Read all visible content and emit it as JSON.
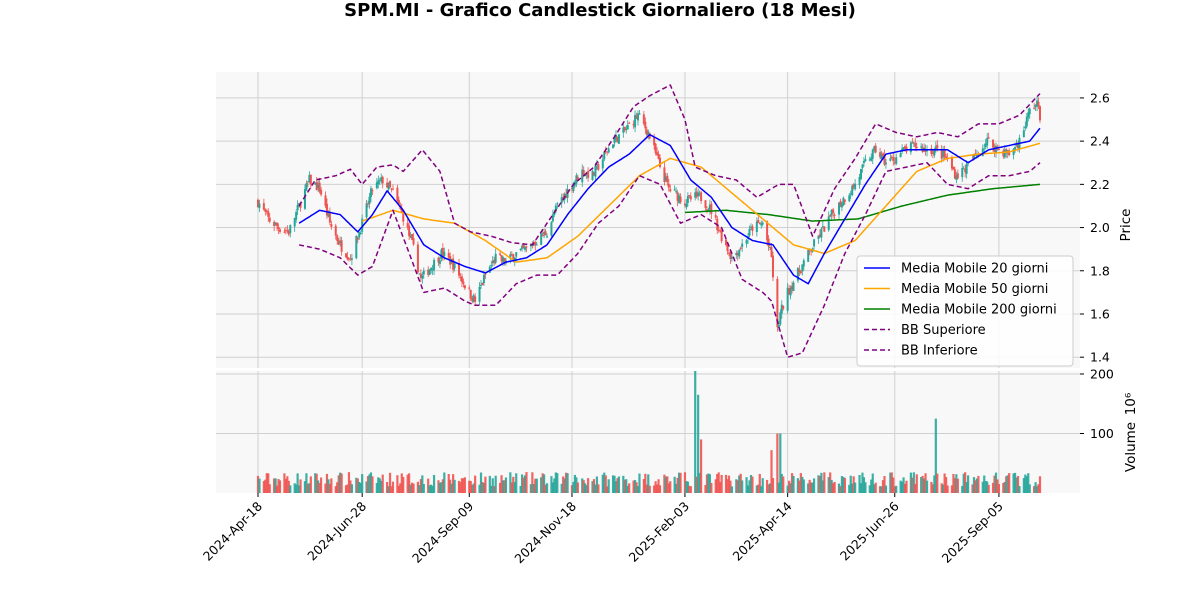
{
  "chart_data": {
    "type": "candlestick",
    "title": "SPM.MI - Grafico Candlestick Giornaliero (18 Mesi)",
    "price_panel": {
      "ylabel": "Price",
      "ylim": [
        1.35,
        2.72
      ],
      "yticks": [
        1.4,
        1.6,
        1.8,
        2.0,
        2.2,
        2.4,
        2.6
      ],
      "ytick_labels": [
        "1.4",
        "1.6",
        "1.8",
        "2.0",
        "2.2",
        "2.4",
        "2.6"
      ],
      "grid": true
    },
    "volume_panel": {
      "ylabel": "Volume",
      "unit_exponent": "10⁶",
      "ylim": [
        0,
        205
      ],
      "yticks": [
        100,
        200
      ],
      "ytick_labels": [
        "100",
        "200"
      ],
      "grid": true
    },
    "x_axis": {
      "start_date": "2024-04-18",
      "end_date": "2025-10-03",
      "tick_labels": [
        "2024-Apr-18",
        "2024-Jun-28",
        "2024-Sep-09",
        "2024-Nov-18",
        "2025-Feb-03",
        "2025-Apr-14",
        "2025-Jun-26",
        "2025-Sep-05"
      ]
    },
    "colors": {
      "up": "#26a69a",
      "down": "#ef5350",
      "ma20": "#0000ff",
      "ma50": "#ffa500",
      "ma200": "#008000",
      "bb": "#800080"
    },
    "legend_position": "center-right",
    "legend": [
      {
        "label": "Media Mobile 20 giorni",
        "color": "#0000ff",
        "style": "solid"
      },
      {
        "label": "Media Mobile 50 giorni",
        "color": "#ffa500",
        "style": "solid"
      },
      {
        "label": "Media Mobile 200 giorni",
        "color": "#008000",
        "style": "solid"
      },
      {
        "label": "BB Superiore",
        "color": "#800080",
        "style": "dashed"
      },
      {
        "label": "BB Inferiore",
        "color": "#800080",
        "style": "dashed"
      }
    ],
    "close_anchors": [
      [
        "2024-04-18",
        2.12
      ],
      [
        "2024-04-25",
        2.04
      ],
      [
        "2024-05-02",
        2.0
      ],
      [
        "2024-05-09",
        1.98
      ],
      [
        "2024-05-16",
        2.1
      ],
      [
        "2024-05-23",
        2.22
      ],
      [
        "2024-05-30",
        2.18
      ],
      [
        "2024-06-06",
        2.02
      ],
      [
        "2024-06-13",
        1.92
      ],
      [
        "2024-06-20",
        1.86
      ],
      [
        "2024-06-28",
        2.02
      ],
      [
        "2024-07-05",
        2.18
      ],
      [
        "2024-07-12",
        2.22
      ],
      [
        "2024-07-19",
        2.16
      ],
      [
        "2024-07-26",
        2.05
      ],
      [
        "2024-08-02",
        1.9
      ],
      [
        "2024-08-07",
        1.76
      ],
      [
        "2024-08-14",
        1.82
      ],
      [
        "2024-08-21",
        1.88
      ],
      [
        "2024-08-28",
        1.84
      ],
      [
        "2024-09-04",
        1.76
      ],
      [
        "2024-09-09",
        1.7
      ],
      [
        "2024-09-13",
        1.66
      ],
      [
        "2024-09-20",
        1.78
      ],
      [
        "2024-09-27",
        1.86
      ],
      [
        "2024-10-04",
        1.84
      ],
      [
        "2024-10-11",
        1.88
      ],
      [
        "2024-10-18",
        1.9
      ],
      [
        "2024-10-25",
        1.94
      ],
      [
        "2024-11-01",
        1.98
      ],
      [
        "2024-11-08",
        2.1
      ],
      [
        "2024-11-18",
        2.2
      ],
      [
        "2024-11-25",
        2.26
      ],
      [
        "2024-12-02",
        2.24
      ],
      [
        "2024-12-09",
        2.32
      ],
      [
        "2024-12-16",
        2.4
      ],
      [
        "2024-12-23",
        2.44
      ],
      [
        "2025-01-02",
        2.52
      ],
      [
        "2025-01-09",
        2.44
      ],
      [
        "2025-01-16",
        2.3
      ],
      [
        "2025-01-23",
        2.18
      ],
      [
        "2025-02-03",
        2.12
      ],
      [
        "2025-02-10",
        2.14
      ],
      [
        "2025-02-14",
        2.14
      ],
      [
        "2025-02-21",
        2.08
      ],
      [
        "2025-02-28",
        1.96
      ],
      [
        "2025-03-07",
        1.86
      ],
      [
        "2025-03-14",
        1.92
      ],
      [
        "2025-03-21",
        2.0
      ],
      [
        "2025-03-28",
        2.02
      ],
      [
        "2025-04-03",
        1.86
      ],
      [
        "2025-04-07",
        1.52
      ],
      [
        "2025-04-09",
        1.6
      ],
      [
        "2025-04-14",
        1.7
      ],
      [
        "2025-04-22",
        1.8
      ],
      [
        "2025-04-30",
        1.9
      ],
      [
        "2025-05-09",
        2.0
      ],
      [
        "2025-05-16",
        2.08
      ],
      [
        "2025-05-23",
        2.14
      ],
      [
        "2025-05-30",
        2.2
      ],
      [
        "2025-06-06",
        2.3
      ],
      [
        "2025-06-13",
        2.36
      ],
      [
        "2025-06-20",
        2.3
      ],
      [
        "2025-06-26",
        2.32
      ],
      [
        "2025-07-03",
        2.36
      ],
      [
        "2025-07-10",
        2.38
      ],
      [
        "2025-07-17",
        2.36
      ],
      [
        "2025-07-24",
        2.36
      ],
      [
        "2025-07-31",
        2.32
      ],
      [
        "2025-08-07",
        2.24
      ],
      [
        "2025-08-14",
        2.28
      ],
      [
        "2025-08-21",
        2.34
      ],
      [
        "2025-08-28",
        2.4
      ],
      [
        "2025-09-05",
        2.36
      ],
      [
        "2025-09-12",
        2.34
      ],
      [
        "2025-09-19",
        2.4
      ],
      [
        "2025-09-26",
        2.54
      ],
      [
        "2025-10-01",
        2.58
      ],
      [
        "2025-10-03",
        2.5
      ]
    ],
    "ma20_anchors": [
      [
        "2024-05-16",
        2.02
      ],
      [
        "2024-05-30",
        2.08
      ],
      [
        "2024-06-13",
        2.06
      ],
      [
        "2024-06-25",
        1.98
      ],
      [
        "2024-07-05",
        2.06
      ],
      [
        "2024-07-15",
        2.17
      ],
      [
        "2024-07-26",
        2.08
      ],
      [
        "2024-08-09",
        1.92
      ],
      [
        "2024-08-23",
        1.86
      ],
      [
        "2024-09-06",
        1.82
      ],
      [
        "2024-09-20",
        1.79
      ],
      [
        "2024-10-04",
        1.84
      ],
      [
        "2024-10-18",
        1.86
      ],
      [
        "2024-11-01",
        1.92
      ],
      [
        "2024-11-15",
        2.06
      ],
      [
        "2024-11-29",
        2.18
      ],
      [
        "2024-12-13",
        2.28
      ],
      [
        "2024-12-27",
        2.34
      ],
      [
        "2025-01-10",
        2.43
      ],
      [
        "2025-01-24",
        2.38
      ],
      [
        "2025-02-07",
        2.22
      ],
      [
        "2025-02-21",
        2.14
      ],
      [
        "2025-03-07",
        2.0
      ],
      [
        "2025-03-21",
        1.94
      ],
      [
        "2025-04-04",
        1.92
      ],
      [
        "2025-04-18",
        1.78
      ],
      [
        "2025-04-28",
        1.74
      ],
      [
        "2025-05-09",
        1.88
      ],
      [
        "2025-05-23",
        2.04
      ],
      [
        "2025-06-06",
        2.2
      ],
      [
        "2025-06-20",
        2.34
      ],
      [
        "2025-07-04",
        2.36
      ],
      [
        "2025-07-18",
        2.36
      ],
      [
        "2025-08-01",
        2.36
      ],
      [
        "2025-08-15",
        2.3
      ],
      [
        "2025-08-29",
        2.36
      ],
      [
        "2025-09-12",
        2.38
      ],
      [
        "2025-09-26",
        2.4
      ],
      [
        "2025-10-03",
        2.46
      ]
    ],
    "ma50_anchors": [
      [
        "2024-06-28",
        2.03
      ],
      [
        "2024-07-19",
        2.08
      ],
      [
        "2024-08-09",
        2.04
      ],
      [
        "2024-08-30",
        2.02
      ],
      [
        "2024-09-20",
        1.94
      ],
      [
        "2024-10-11",
        1.84
      ],
      [
        "2024-11-01",
        1.86
      ],
      [
        "2024-11-22",
        1.96
      ],
      [
        "2024-12-13",
        2.1
      ],
      [
        "2025-01-03",
        2.24
      ],
      [
        "2025-01-24",
        2.32
      ],
      [
        "2025-02-14",
        2.28
      ],
      [
        "2025-03-07",
        2.16
      ],
      [
        "2025-03-28",
        2.04
      ],
      [
        "2025-04-18",
        1.92
      ],
      [
        "2025-05-09",
        1.88
      ],
      [
        "2025-05-30",
        1.94
      ],
      [
        "2025-06-20",
        2.1
      ],
      [
        "2025-07-11",
        2.26
      ],
      [
        "2025-08-01",
        2.32
      ],
      [
        "2025-08-22",
        2.34
      ],
      [
        "2025-09-12",
        2.35
      ],
      [
        "2025-10-03",
        2.39
      ]
    ],
    "ma200_anchors": [
      [
        "2025-02-03",
        2.07
      ],
      [
        "2025-03-03",
        2.08
      ],
      [
        "2025-04-01",
        2.06
      ],
      [
        "2025-05-01",
        2.03
      ],
      [
        "2025-06-01",
        2.04
      ],
      [
        "2025-07-01",
        2.1
      ],
      [
        "2025-08-01",
        2.15
      ],
      [
        "2025-09-01",
        2.18
      ],
      [
        "2025-10-03",
        2.2
      ]
    ],
    "bb_upper_anchors": [
      [
        "2024-05-16",
        2.1
      ],
      [
        "2024-05-27",
        2.22
      ],
      [
        "2024-06-10",
        2.24
      ],
      [
        "2024-06-20",
        2.27
      ],
      [
        "2024-06-28",
        2.2
      ],
      [
        "2024-07-08",
        2.28
      ],
      [
        "2024-07-19",
        2.29
      ],
      [
        "2024-07-26",
        2.26
      ],
      [
        "2024-08-08",
        2.36
      ],
      [
        "2024-08-20",
        2.26
      ],
      [
        "2024-08-30",
        2.02
      ],
      [
        "2024-09-10",
        1.98
      ],
      [
        "2024-09-24",
        1.96
      ],
      [
        "2024-10-08",
        1.93
      ],
      [
        "2024-10-22",
        1.92
      ],
      [
        "2024-11-05",
        2.06
      ],
      [
        "2024-11-19",
        2.2
      ],
      [
        "2024-12-03",
        2.28
      ],
      [
        "2024-12-17",
        2.42
      ],
      [
        "2024-12-30",
        2.56
      ],
      [
        "2025-01-10",
        2.61
      ],
      [
        "2025-01-24",
        2.66
      ],
      [
        "2025-02-03",
        2.5
      ],
      [
        "2025-02-10",
        2.28
      ],
      [
        "2025-02-24",
        2.24
      ],
      [
        "2025-03-10",
        2.22
      ],
      [
        "2025-03-24",
        2.14
      ],
      [
        "2025-04-03",
        2.18
      ],
      [
        "2025-04-08",
        2.2
      ],
      [
        "2025-04-18",
        2.2
      ],
      [
        "2025-05-01",
        1.96
      ],
      [
        "2025-05-16",
        2.18
      ],
      [
        "2025-05-30",
        2.32
      ],
      [
        "2025-06-13",
        2.48
      ],
      [
        "2025-06-27",
        2.44
      ],
      [
        "2025-07-11",
        2.42
      ],
      [
        "2025-07-25",
        2.44
      ],
      [
        "2025-08-08",
        2.42
      ],
      [
        "2025-08-22",
        2.48
      ],
      [
        "2025-09-05",
        2.48
      ],
      [
        "2025-09-19",
        2.52
      ],
      [
        "2025-10-03",
        2.62
      ]
    ],
    "bb_lower_anchors": [
      [
        "2024-05-16",
        1.92
      ],
      [
        "2024-05-30",
        1.9
      ],
      [
        "2024-06-13",
        1.86
      ],
      [
        "2024-06-25",
        1.78
      ],
      [
        "2024-07-05",
        1.82
      ],
      [
        "2024-07-19",
        2.08
      ],
      [
        "2024-07-29",
        1.9
      ],
      [
        "2024-08-09",
        1.7
      ],
      [
        "2024-08-23",
        1.72
      ],
      [
        "2024-09-06",
        1.66
      ],
      [
        "2024-09-13",
        1.64
      ],
      [
        "2024-09-27",
        1.64
      ],
      [
        "2024-10-11",
        1.74
      ],
      [
        "2024-10-25",
        1.78
      ],
      [
        "2024-11-08",
        1.78
      ],
      [
        "2024-11-22",
        1.88
      ],
      [
        "2024-12-06",
        2.02
      ],
      [
        "2024-12-20",
        2.1
      ],
      [
        "2025-01-03",
        2.24
      ],
      [
        "2025-01-17",
        2.2
      ],
      [
        "2025-01-31",
        2.02
      ],
      [
        "2025-02-14",
        2.06
      ],
      [
        "2025-02-28",
        2.0
      ],
      [
        "2025-03-14",
        1.76
      ],
      [
        "2025-03-28",
        1.7
      ],
      [
        "2025-04-03",
        1.66
      ],
      [
        "2025-04-14",
        1.4
      ],
      [
        "2025-04-24",
        1.42
      ],
      [
        "2025-05-09",
        1.64
      ],
      [
        "2025-05-23",
        1.88
      ],
      [
        "2025-06-06",
        2.06
      ],
      [
        "2025-06-20",
        2.26
      ],
      [
        "2025-07-04",
        2.28
      ],
      [
        "2025-07-18",
        2.3
      ],
      [
        "2025-08-01",
        2.2
      ],
      [
        "2025-08-15",
        2.18
      ],
      [
        "2025-08-29",
        2.24
      ],
      [
        "2025-09-12",
        2.24
      ],
      [
        "2025-09-26",
        2.26
      ],
      [
        "2025-10-03",
        2.3
      ]
    ],
    "volume_spikes": [
      [
        "2025-02-10",
        205
      ],
      [
        "2025-02-12",
        165
      ],
      [
        "2025-02-14",
        90
      ],
      [
        "2025-04-07",
        100
      ],
      [
        "2025-04-09",
        100
      ],
      [
        "2025-07-24",
        125
      ],
      [
        "2025-04-03",
        72
      ]
    ],
    "volume_typical": 22
  }
}
